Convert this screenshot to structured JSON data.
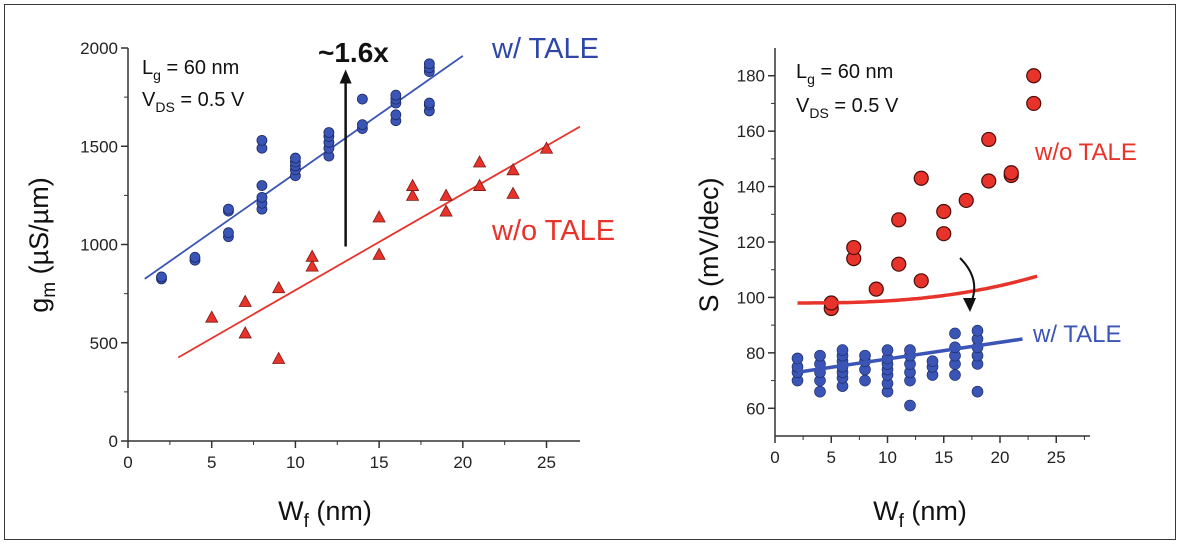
{
  "colors": {
    "blue": "#3a55b5",
    "red": "#e8332a",
    "axis": "#333333"
  },
  "chart_data": [
    {
      "type": "scatter",
      "xlabel_main": "W",
      "xlabel_sub": "f",
      "xlabel_unit": " (nm)",
      "ylabel_main": "g",
      "ylabel_sub": "m",
      "ylabel_unit": " (µS/µm)",
      "xlim": [
        0,
        27
      ],
      "ylim": [
        0,
        2000
      ],
      "xticks": [
        "0",
        "5",
        "10",
        "15",
        "20",
        "25"
      ],
      "yticks": [
        "0",
        "500",
        "1000",
        "1500",
        "2000"
      ],
      "annotation": {
        "lg_main": "L",
        "lg_sub": "g",
        "lg_rest": " = 60 nm",
        "vds_main": "V",
        "vds_sub": "DS",
        "vds_rest": "  = 0.5 V"
      },
      "improvement_label": "~1.6x",
      "improvement_arrow": {
        "x": 13,
        "from": 990,
        "to": 1870
      },
      "series": [
        {
          "name": "w/ TALE",
          "marker": "circle",
          "color": "#3a55b5",
          "points": [
            [
              2,
              825
            ],
            [
              2,
              835
            ],
            [
              4,
              920
            ],
            [
              4,
              935
            ],
            [
              6,
              1040
            ],
            [
              6,
              1060
            ],
            [
              6,
              1170
            ],
            [
              6,
              1180
            ],
            [
              8,
              1180
            ],
            [
              8,
              1210
            ],
            [
              8,
              1240
            ],
            [
              8,
              1300
            ],
            [
              8,
              1490
            ],
            [
              8,
              1530
            ],
            [
              10,
              1350
            ],
            [
              10,
              1380
            ],
            [
              10,
              1400
            ],
            [
              10,
              1420
            ],
            [
              10,
              1440
            ],
            [
              12,
              1450
            ],
            [
              12,
              1490
            ],
            [
              12,
              1520
            ],
            [
              12,
              1550
            ],
            [
              12,
              1570
            ],
            [
              14,
              1590
            ],
            [
              14,
              1610
            ],
            [
              14,
              1740
            ],
            [
              16,
              1630
            ],
            [
              16,
              1660
            ],
            [
              16,
              1720
            ],
            [
              16,
              1740
            ],
            [
              16,
              1760
            ],
            [
              18,
              1680
            ],
            [
              18,
              1710
            ],
            [
              18,
              1720
            ],
            [
              18,
              1880
            ],
            [
              18,
              1900
            ],
            [
              18,
              1920
            ]
          ],
          "fit": [
            [
              1,
              825
            ],
            [
              20,
              1960
            ]
          ]
        },
        {
          "name": "w/o TALE",
          "marker": "triangle",
          "color": "#e8332a",
          "points": [
            [
              5,
              630
            ],
            [
              7,
              550
            ],
            [
              7,
              710
            ],
            [
              9,
              420
            ],
            [
              9,
              780
            ],
            [
              11,
              890
            ],
            [
              11,
              940
            ],
            [
              15,
              950
            ],
            [
              15,
              1140
            ],
            [
              17,
              1250
            ],
            [
              17,
              1300
            ],
            [
              19,
              1170
            ],
            [
              19,
              1250
            ],
            [
              21,
              1300
            ],
            [
              21,
              1420
            ],
            [
              23,
              1260
            ],
            [
              23,
              1380
            ],
            [
              25,
              1490
            ]
          ],
          "fit": [
            [
              3,
              425
            ],
            [
              27,
              1600
            ]
          ]
        }
      ]
    },
    {
      "type": "scatter",
      "xlabel_main": "W",
      "xlabel_sub": "f",
      "xlabel_unit": " (nm)",
      "ylabel_main": "S",
      "ylabel_unit": " (mV/dec)",
      "xlim": [
        0,
        28
      ],
      "ylim": [
        50,
        190
      ],
      "xticks": [
        "0",
        "5",
        "10",
        "15",
        "20",
        "25"
      ],
      "yticks": [
        "60",
        "80",
        "100",
        "120",
        "140",
        "160",
        "180"
      ],
      "annotation": {
        "lg_main": "L",
        "lg_sub": "g",
        "lg_rest": " = 60 nm",
        "vds_main": "V",
        "vds_sub": "DS",
        "vds_rest": " = 0.5 V"
      },
      "series": [
        {
          "name": "w/o TALE",
          "marker": "circle",
          "color": "#e8332a",
          "points": [
            [
              5,
              96
            ],
            [
              5,
              98
            ],
            [
              7,
              114
            ],
            [
              7,
              118
            ],
            [
              9,
              103
            ],
            [
              11,
              112
            ],
            [
              11,
              128
            ],
            [
              13,
              106
            ],
            [
              13,
              143
            ],
            [
              15,
              123
            ],
            [
              15,
              131
            ],
            [
              17,
              135
            ],
            [
              19,
              142
            ],
            [
              19,
              157
            ],
            [
              21,
              144
            ],
            [
              21,
              145
            ],
            [
              23,
              170
            ],
            [
              23,
              180
            ]
          ],
          "fit_curve": {
            "x_from": 2,
            "x_to": 23.3,
            "a": 98,
            "b": 0.0034,
            "c": 2.6,
            "x0": 2
          }
        },
        {
          "name": "w/ TALE",
          "marker": "circle",
          "color": "#3a55b5",
          "points": [
            [
              2,
              70
            ],
            [
              2,
              73
            ],
            [
              2,
              75
            ],
            [
              2,
              78
            ],
            [
              4,
              66
            ],
            [
              4,
              70
            ],
            [
              4,
              73
            ],
            [
              4,
              76
            ],
            [
              4,
              79
            ],
            [
              6,
              68
            ],
            [
              6,
              71
            ],
            [
              6,
              73
            ],
            [
              6,
              75
            ],
            [
              6,
              77
            ],
            [
              6,
              79
            ],
            [
              6,
              81
            ],
            [
              8,
              70
            ],
            [
              8,
              74
            ],
            [
              8,
              77
            ],
            [
              8,
              79
            ],
            [
              10,
              66
            ],
            [
              10,
              69
            ],
            [
              10,
              72
            ],
            [
              10,
              74
            ],
            [
              10,
              76
            ],
            [
              10,
              78
            ],
            [
              10,
              81
            ],
            [
              12,
              61
            ],
            [
              12,
              70
            ],
            [
              12,
              73
            ],
            [
              12,
              76
            ],
            [
              12,
              79
            ],
            [
              12,
              81
            ],
            [
              14,
              72
            ],
            [
              14,
              75
            ],
            [
              14,
              77
            ],
            [
              16,
              72
            ],
            [
              16,
              76
            ],
            [
              16,
              79
            ],
            [
              16,
              82
            ],
            [
              16,
              87
            ],
            [
              18,
              66
            ],
            [
              18,
              76
            ],
            [
              18,
              79
            ],
            [
              18,
              82
            ],
            [
              18,
              85
            ],
            [
              18,
              88
            ]
          ],
          "fit": [
            [
              2,
              73
            ],
            [
              22,
              85
            ]
          ]
        }
      ]
    }
  ]
}
